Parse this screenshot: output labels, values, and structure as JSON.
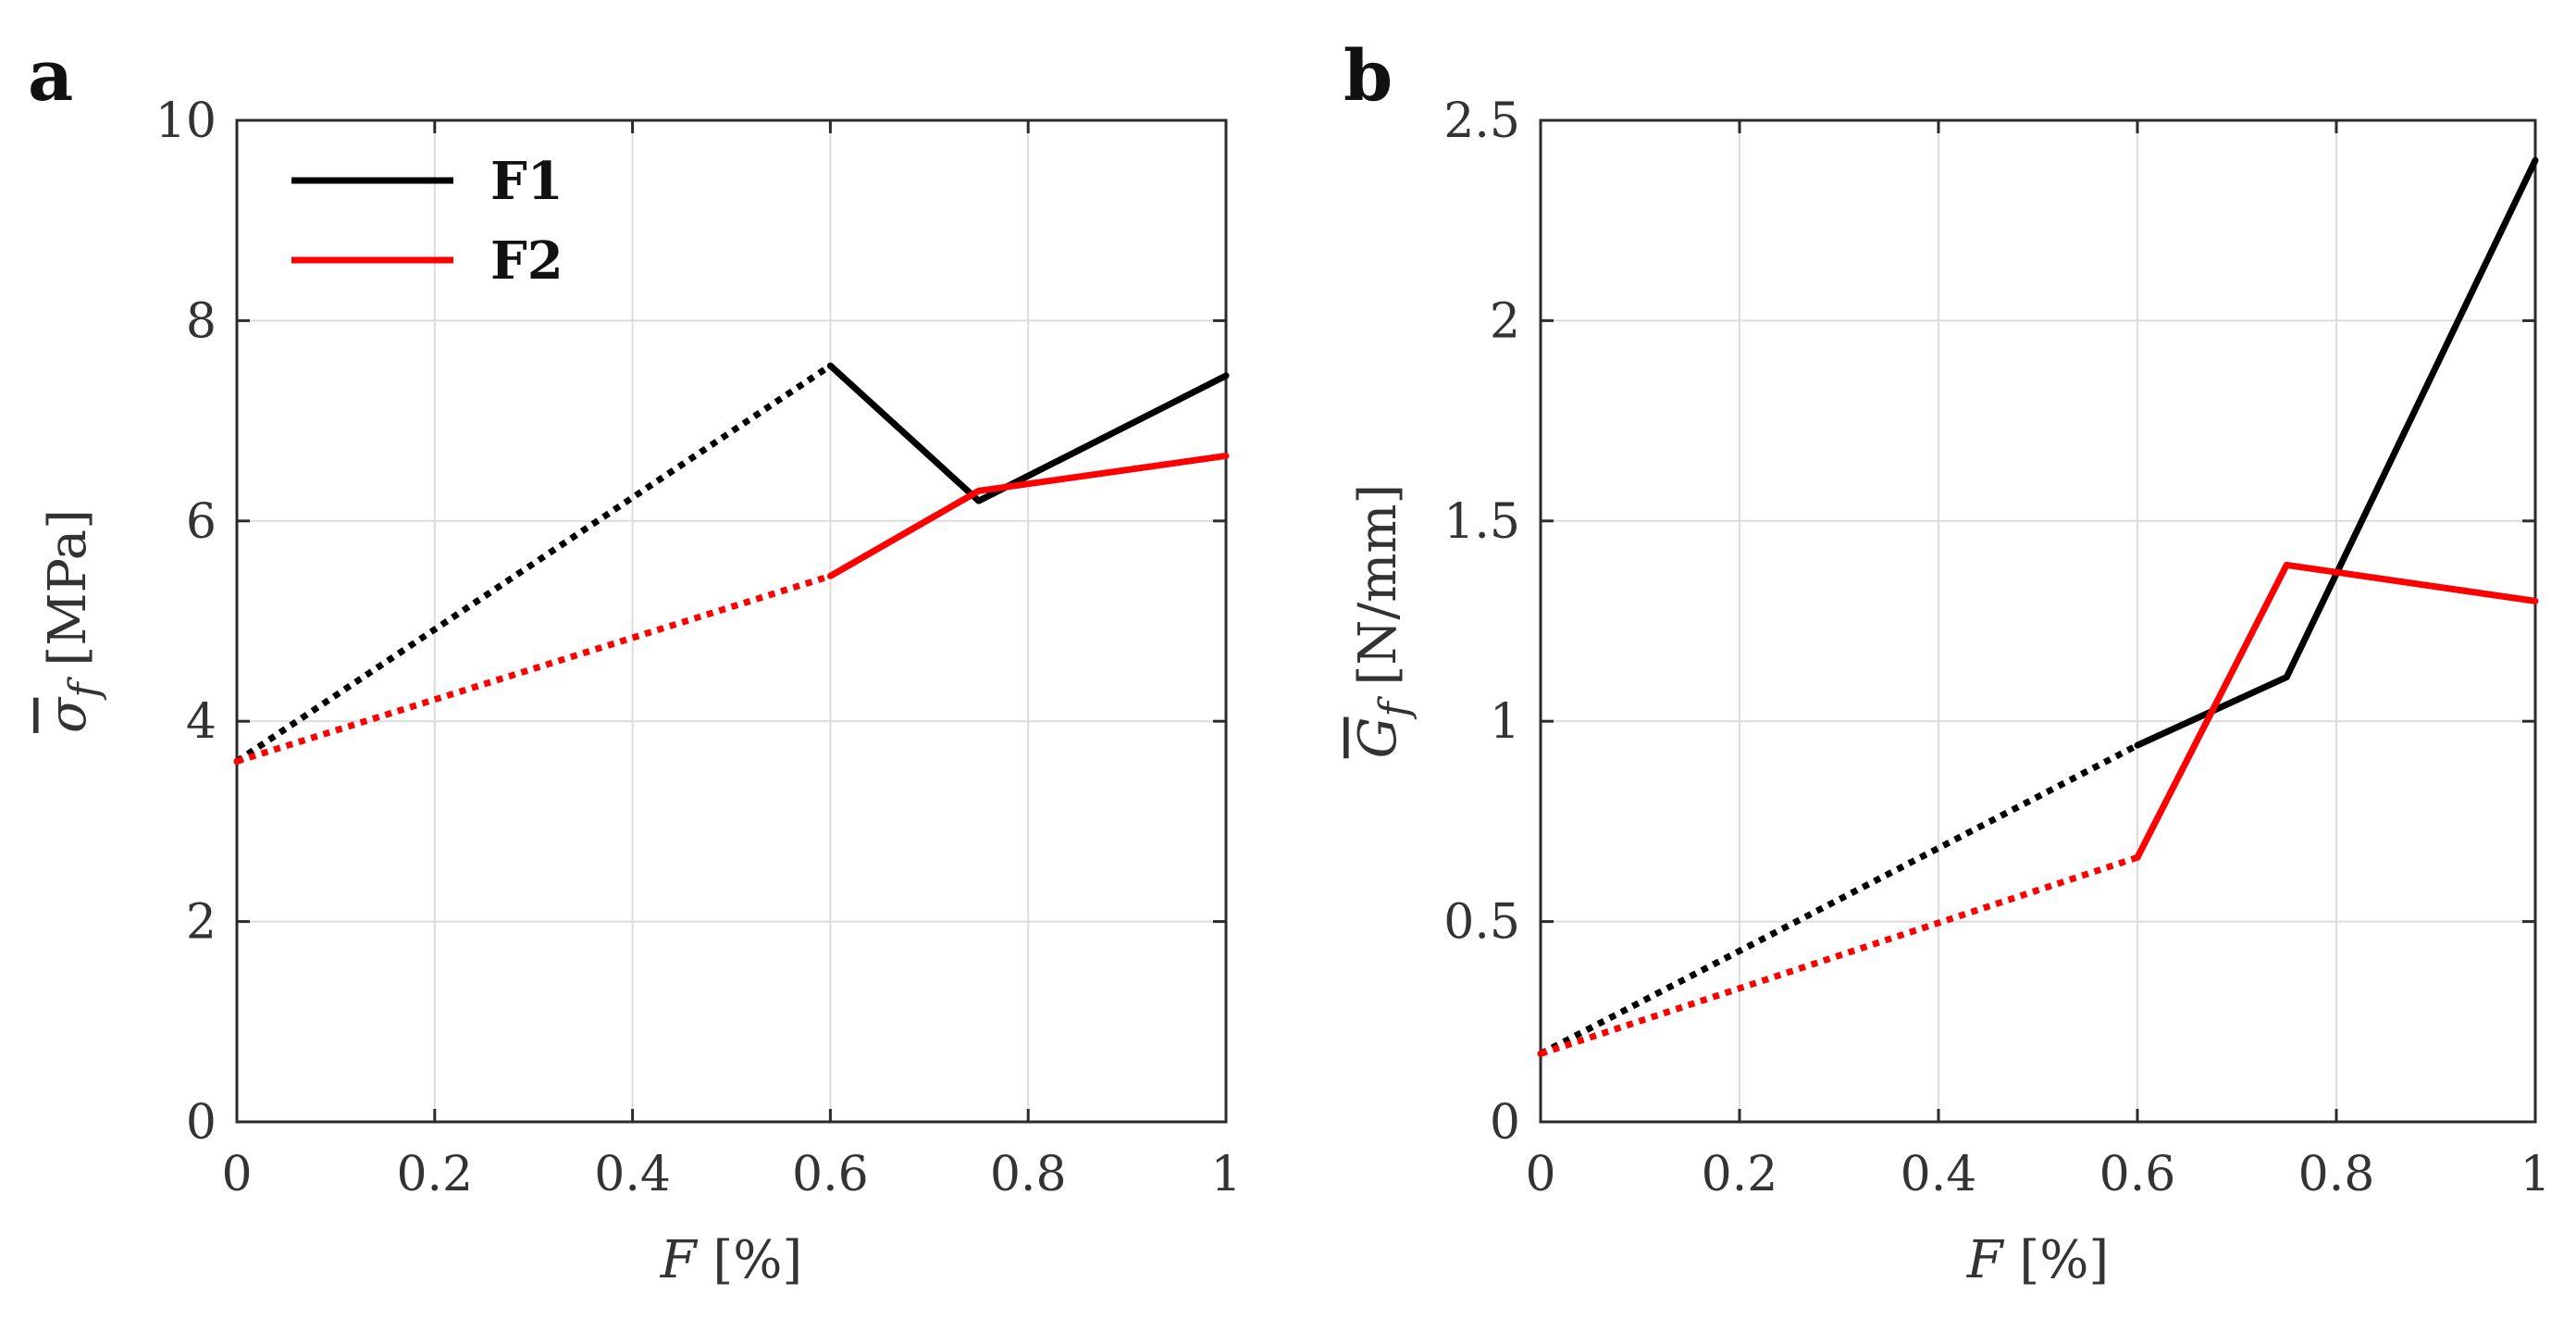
{
  "chart_data": [
    {
      "type": "line",
      "panel_label": "a",
      "title": "",
      "xlabel": "F [%]",
      "xlabel_symbol": "F",
      "xlabel_unit": " [%]",
      "ylabel": "σ̄f [MPa]",
      "ylabel_symbol": "σ",
      "ylabel_subscript": "f",
      "ylabel_unit": " [MPa]",
      "xlim": [
        0,
        1
      ],
      "ylim": [
        0,
        10
      ],
      "xticks": [
        0,
        0.2,
        0.4,
        0.6,
        0.8,
        1
      ],
      "xtick_labels": [
        "0",
        "0.2",
        "0.4",
        "0.6",
        "0.8",
        "1"
      ],
      "yticks": [
        0,
        2,
        4,
        6,
        8,
        10
      ],
      "ytick_labels": [
        "0",
        "2",
        "4",
        "6",
        "8",
        "10"
      ],
      "grid": true,
      "legend": {
        "placement": "top-left",
        "entries": [
          "F1",
          "F2"
        ]
      },
      "series": [
        {
          "name": "F1",
          "color": "#000000",
          "x": [
            0,
            0.6,
            0.75,
            1
          ],
          "y": [
            3.6,
            7.55,
            6.2,
            7.45
          ],
          "dotted_segments": [
            0
          ]
        },
        {
          "name": "F2",
          "color": "#ff0000",
          "x": [
            0,
            0.6,
            0.75,
            1
          ],
          "y": [
            3.6,
            5.45,
            6.3,
            6.65
          ],
          "dotted_segments": [
            0
          ]
        }
      ]
    },
    {
      "type": "line",
      "panel_label": "b",
      "title": "",
      "xlabel": "F [%]",
      "xlabel_symbol": "F",
      "xlabel_unit": " [%]",
      "ylabel": "Ḡf [N/mm]",
      "ylabel_symbol": "G",
      "ylabel_subscript": "f",
      "ylabel_unit": " [N/mm]",
      "xlim": [
        0,
        1
      ],
      "ylim": [
        0,
        2.5
      ],
      "xticks": [
        0,
        0.2,
        0.4,
        0.6,
        0.8,
        1
      ],
      "xtick_labels": [
        "0",
        "0.2",
        "0.4",
        "0.6",
        "0.8",
        "1"
      ],
      "yticks": [
        0,
        0.5,
        1,
        1.5,
        2,
        2.5
      ],
      "ytick_labels": [
        "0",
        "0.5",
        "1",
        "1.5",
        "2",
        "2.5"
      ],
      "grid": true,
      "legend": null,
      "series": [
        {
          "name": "F1",
          "color": "#000000",
          "x": [
            0,
            0.6,
            0.75,
            1
          ],
          "y": [
            0.17,
            0.94,
            1.11,
            2.4
          ],
          "dotted_segments": [
            0
          ]
        },
        {
          "name": "F2",
          "color": "#ff0000",
          "x": [
            0,
            0.6,
            0.75,
            1
          ],
          "y": [
            0.17,
            0.66,
            1.39,
            1.3
          ],
          "dotted_segments": [
            0
          ]
        }
      ]
    }
  ]
}
